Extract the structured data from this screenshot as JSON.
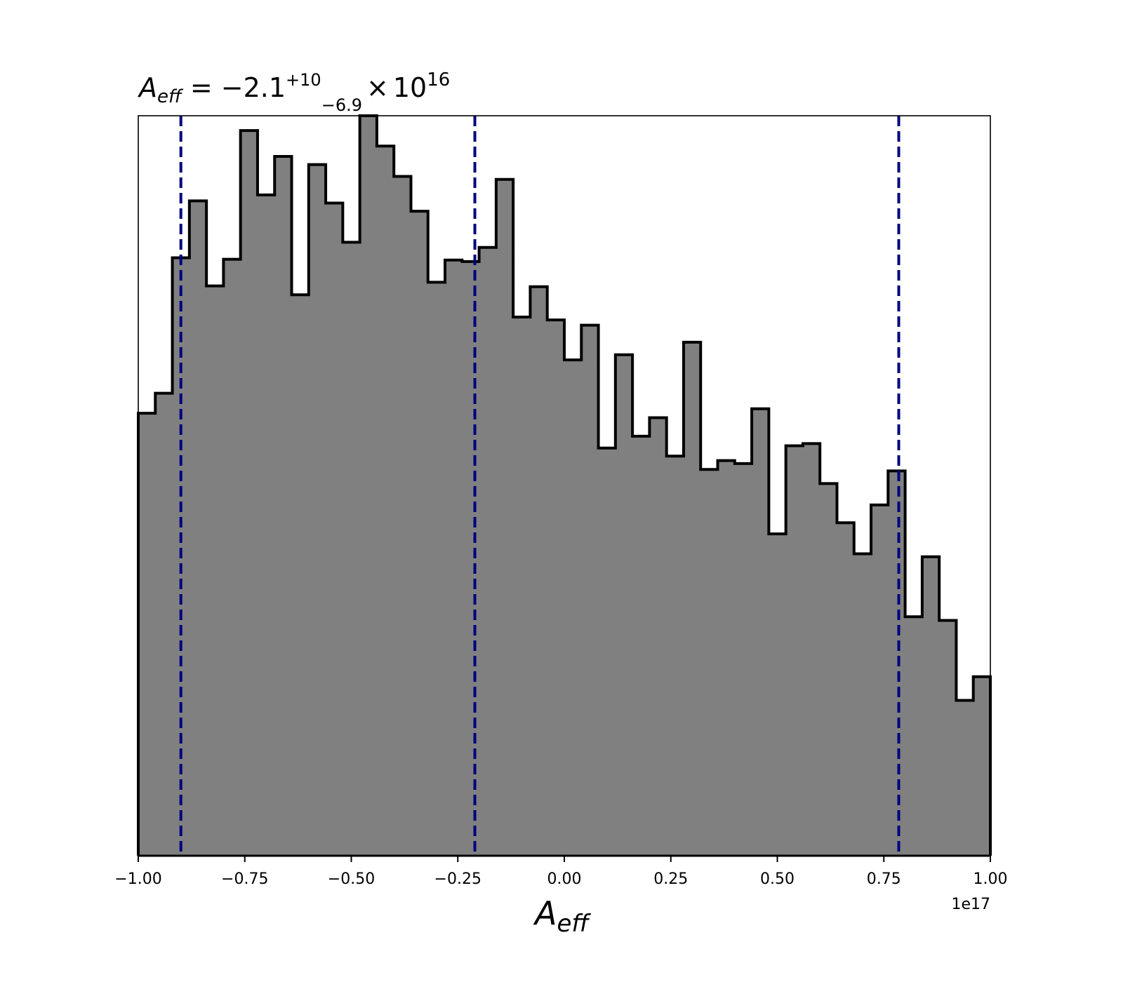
{
  "chart_data": {
    "type": "histogram",
    "title": {
      "lhs_main": "A",
      "lhs_sub": "eff",
      "equals": " = ",
      "median": "−2.1",
      "err_plus": "+10",
      "err_minus": "−6.9",
      "times": "×",
      "base": "10",
      "exponent": "16"
    },
    "xlabel": {
      "main": "A",
      "sub": "eff"
    },
    "ylabel": "",
    "x_offset_label": "1e17",
    "xlim": [
      -1.0,
      1.0
    ],
    "ylim": [
      0,
      100
    ],
    "x_ticks": [
      -1.0,
      -0.75,
      -0.5,
      -0.25,
      0.0,
      0.25,
      0.5,
      0.75,
      1.0
    ],
    "x_tick_labels": [
      "−1.00",
      "−0.75",
      "−0.50",
      "−0.25",
      "0.00",
      "0.25",
      "0.50",
      "0.75",
      "1.00"
    ],
    "y_ticks_visible": false,
    "grid": false,
    "fill_color": "#808080",
    "edge_color": "#000000",
    "quantile_line_color": "#00007f",
    "quantile_lines": [
      -0.9,
      -0.21,
      0.785
    ],
    "bin_edges": [
      -1.0,
      -0.96,
      -0.92,
      -0.88,
      -0.84,
      -0.8,
      -0.76,
      -0.72,
      -0.68,
      -0.64,
      -0.6,
      -0.56,
      -0.52,
      -0.48,
      -0.44,
      -0.4,
      -0.36,
      -0.32,
      -0.28,
      -0.24,
      -0.2,
      -0.16,
      -0.12,
      -0.08,
      -0.04,
      0.0,
      0.04,
      0.08,
      0.12,
      0.16,
      0.2,
      0.24,
      0.28,
      0.32,
      0.36,
      0.4,
      0.44,
      0.48,
      0.52,
      0.56,
      0.6,
      0.64,
      0.68,
      0.72,
      0.76,
      0.8,
      0.84,
      0.88,
      0.92,
      0.96,
      1.0
    ],
    "counts": [
      59.8,
      62.5,
      80.8,
      88.5,
      77.0,
      80.6,
      98.0,
      89.3,
      94.5,
      75.8,
      93.4,
      88.2,
      82.9,
      100.0,
      95.9,
      91.8,
      87.1,
      77.5,
      80.5,
      80.3,
      82.2,
      91.4,
      72.8,
      76.9,
      72.4,
      67.0,
      71.7,
      55.1,
      67.7,
      56.7,
      59.2,
      54.0,
      69.4,
      52.2,
      53.4,
      53.0,
      60.4,
      43.5,
      55.4,
      55.7,
      50.3,
      45.0,
      40.8,
      47.4,
      52.0,
      32.3,
      40.4,
      31.8,
      21.0,
      24.2
    ]
  }
}
